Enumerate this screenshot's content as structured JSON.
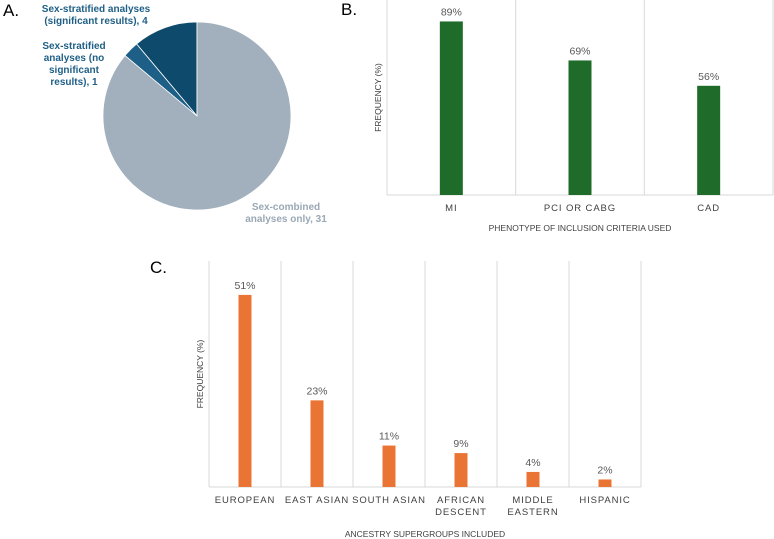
{
  "panels": {
    "a": "A.",
    "b": "B.",
    "c": "C."
  },
  "colors": {
    "pie_significant": "#0e4a6b",
    "pie_no_significant": "#1d5f86",
    "pie_combined": "#a2b0bd",
    "label_dark": "#1f5f86",
    "label_light": "#9aa8b5",
    "bar_green": "#1e6b2a",
    "bar_orange": "#ea7433",
    "grid": "#d9d9d9"
  },
  "chart_data": [
    {
      "type": "pie",
      "slices": [
        {
          "label_lines": [
            "Sex-stratified analyses",
            "(significant results), 4"
          ],
          "value": 4
        },
        {
          "label_lines": [
            "Sex-stratified",
            "analyses (no",
            "significant",
            "results), 1"
          ],
          "value": 1
        },
        {
          "label_lines": [
            "Sex-combined",
            "analyses only, 31"
          ],
          "value": 31
        }
      ]
    },
    {
      "type": "bar",
      "categories": [
        "MI",
        "PCI OR CABG",
        "CAD"
      ],
      "values": [
        89,
        69,
        56
      ],
      "data_labels": [
        "89%",
        "69%",
        "56%"
      ],
      "xlabel": "PHENOTYPE OF INCLUSION CRITERIA USED",
      "ylabel": "FREQUENCY (%)",
      "ylim": [
        0,
        100
      ]
    },
    {
      "type": "bar",
      "categories": [
        [
          "EUROPEAN"
        ],
        [
          "EAST ASIAN"
        ],
        [
          "SOUTH ASIAN"
        ],
        [
          "AFRICAN",
          "DESCENT"
        ],
        [
          "MIDDLE",
          "EASTERN"
        ],
        [
          "HISPANIC"
        ]
      ],
      "values": [
        51,
        23,
        11,
        9,
        4,
        2
      ],
      "data_labels": [
        "51%",
        "23%",
        "11%",
        "9%",
        "4%",
        "2%"
      ],
      "xlabel": "ANCESTRY SUPERGROUPS INCLUDED",
      "ylabel": "FREQUENCY (%)",
      "ylim": [
        0,
        60
      ]
    }
  ]
}
